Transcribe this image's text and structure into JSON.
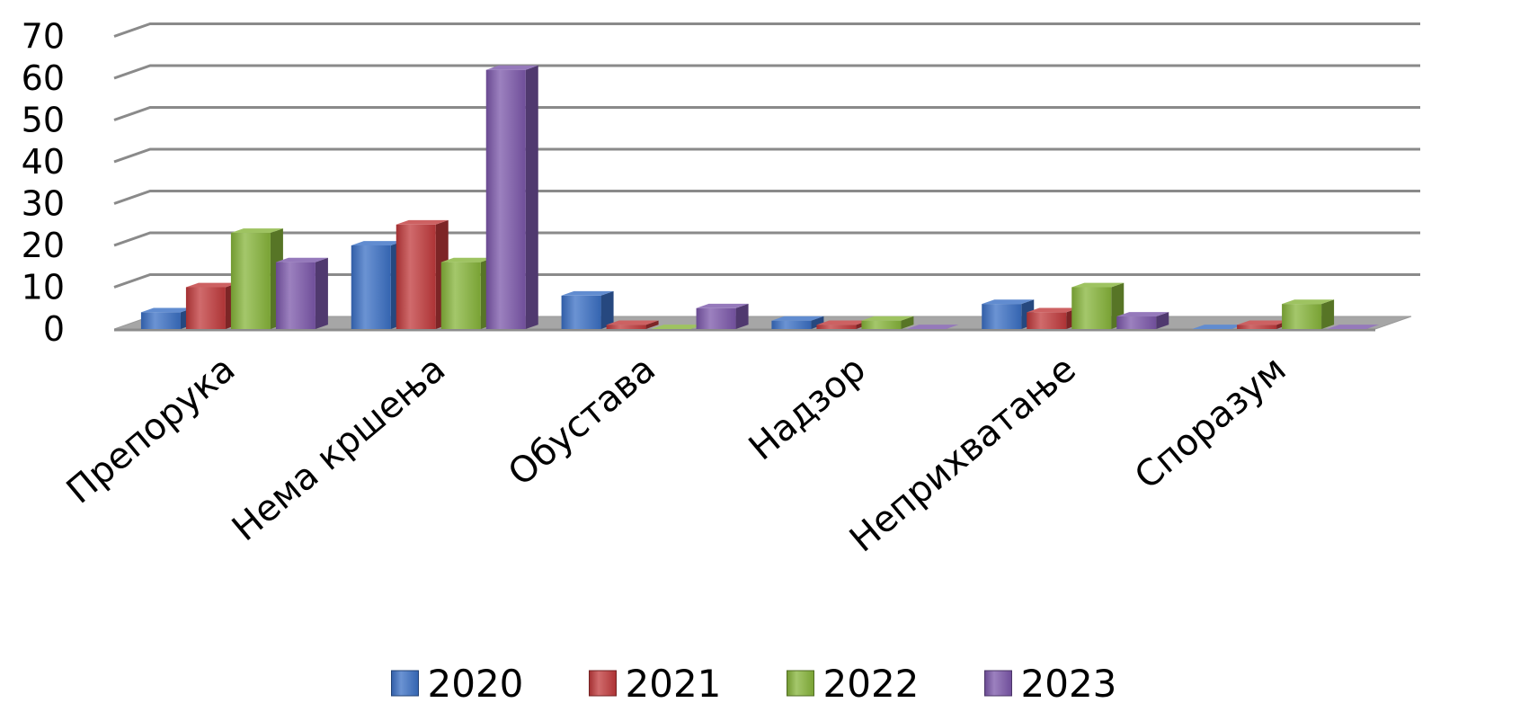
{
  "chart_data": {
    "type": "bar",
    "style": "3d-clustered-column",
    "categories": [
      "Препорука",
      "Нема кршења",
      "Обустава",
      "Надзор",
      "Неприхватање",
      "Споразум"
    ],
    "series": [
      {
        "name": "2020",
        "color": "#3a6fc4",
        "values": [
          4,
          20,
          8,
          2,
          6,
          0
        ]
      },
      {
        "name": "2021",
        "color": "#c0393b",
        "values": [
          10,
          25,
          1,
          1,
          4,
          1
        ]
      },
      {
        "name": "2022",
        "color": "#86b43a",
        "values": [
          23,
          16,
          0,
          2,
          10,
          6
        ]
      },
      {
        "name": "2023",
        "color": "#7b57aa",
        "values": [
          16,
          62,
          5,
          0,
          3,
          0
        ]
      }
    ],
    "ylim": [
      0,
      70
    ],
    "yticks": [
      0,
      10,
      20,
      30,
      40,
      50,
      60,
      70
    ],
    "grid": true,
    "legend_position": "bottom",
    "title": "",
    "xlabel": "",
    "ylabel": ""
  }
}
